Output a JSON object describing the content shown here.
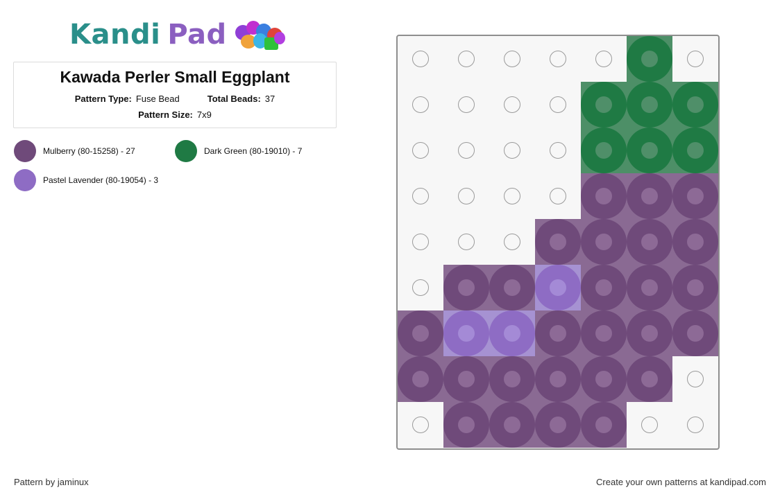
{
  "brand": {
    "name_part1": "Kandi",
    "name_part2": "Pad"
  },
  "pattern": {
    "title": "Kawada Perler Small Eggplant",
    "type_label": "Pattern Type:",
    "type_value": "Fuse Bead",
    "total_label": "Total Beads:",
    "total_value": "37",
    "size_label": "Pattern Size:",
    "size_value": "7x9"
  },
  "legend": [
    {
      "label": "Mulberry (80-15258) - 27",
      "color": "#6f4a7a"
    },
    {
      "label": "Dark Green (80-19010) - 7",
      "color": "#1f7a44"
    },
    {
      "label": "Pastel Lavender (80-19054) - 3",
      "color": "#8e6cc4"
    }
  ],
  "palette": {
    "M": {
      "bg": "#8a6a93",
      "ring": "#6f4a7a",
      "hole": "#8d6a96"
    },
    "G": {
      "bg": "#4d8f67",
      "ring": "#1f7a44",
      "hole": "#4f8f69"
    },
    "L": {
      "bg": "#a692d2",
      "ring": "#8e6cc4",
      "hole": "#a48ad6"
    }
  },
  "grid": {
    "columns": 7,
    "rows": [
      ".....G.",
      "....GGG",
      "....GGG",
      "....MMM",
      "...MMMM",
      ".MMLMMM",
      "MLLMMMM",
      "MMMMMM.",
      ".MMMM.."
    ]
  },
  "footer": {
    "credit": "Pattern by jaminux",
    "cta": "Create your own patterns at kandipad.com"
  }
}
